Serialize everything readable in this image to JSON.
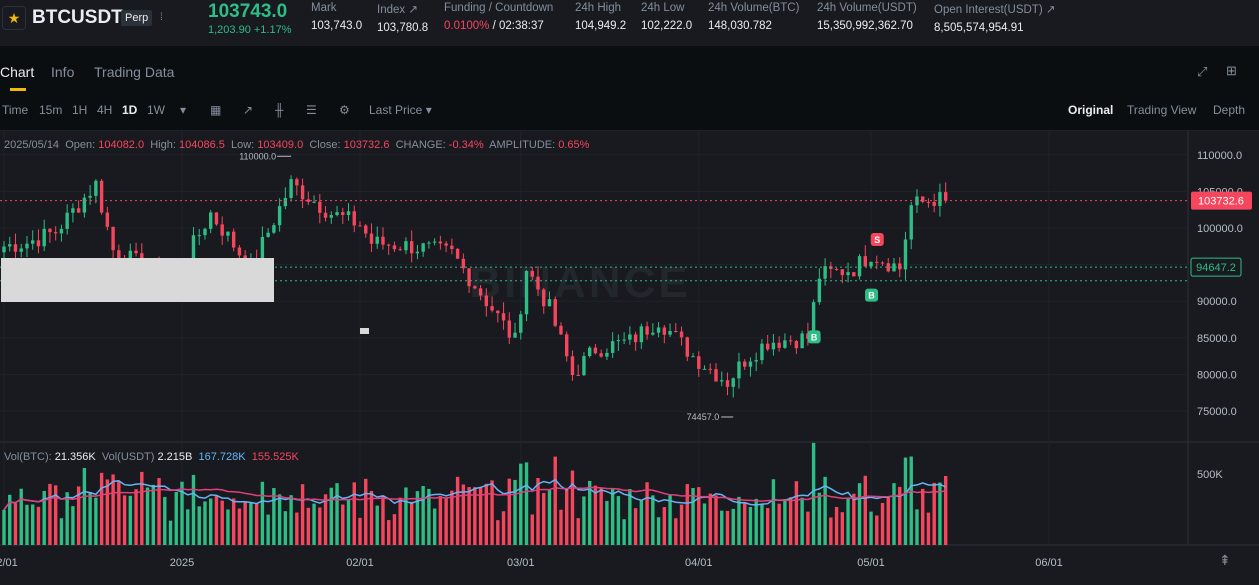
{
  "header": {
    "symbol": "BTCUSDT",
    "type_badge": "Perp",
    "last_price": "103743.0",
    "change": "1,203.90 +1.17%",
    "stats": [
      {
        "label": "Mark",
        "value": "103,743.0"
      },
      {
        "label": "Index ↗",
        "value": "103,780.8"
      },
      {
        "label": "Funding / Countdown",
        "value_red": "0.0100%",
        "value": " / 02:38:37"
      },
      {
        "label": "24h High",
        "value": "104,949.2"
      },
      {
        "label": "24h Low",
        "value": "102,222.0"
      },
      {
        "label": "24h Volume(BTC)",
        "value": "148,030.782"
      },
      {
        "label": "24h Volume(USDT)",
        "value": "15,350,992,362.70"
      },
      {
        "label": "Open Interest(USDT) ↗",
        "value": "8,505,574,954.91"
      }
    ]
  },
  "tabs": [
    "Chart",
    "Info",
    "Trading Data"
  ],
  "toolbar": {
    "left": [
      "Time",
      "15m",
      "1H",
      "4H",
      "1D",
      "1W"
    ],
    "active_interval": "1D",
    "price_type": "Last Price",
    "right": [
      "Original",
      "Trading View",
      "Depth"
    ],
    "active_view": "Original"
  },
  "ohlc": {
    "date": "2025/05/14",
    "open_label": "Open:",
    "open": "104082.0",
    "high_label": "High:",
    "high": "104086.5",
    "low_label": "Low:",
    "low": "103409.0",
    "close_label": "Close:",
    "close": "103732.6",
    "change_label": "CHANGE:",
    "change": "-0.34%",
    "amp_label": "AMPLITUDE:",
    "amp": "0.65%"
  },
  "volume_header": {
    "vol_btc_label": "Vol(BTC):",
    "vol_btc": "21.356K",
    "vol_usdt_label": "Vol(USDT)",
    "vol_usdt": "2.215B",
    "ma1": "167.728K",
    "ma2": "155.525K"
  },
  "colors": {
    "up": "#2ebd85",
    "down": "#f6465d",
    "accent": "#f0b90b",
    "ma_blue": "#64b5f6",
    "ma_pink": "#e0407a"
  },
  "chart_data": {
    "type": "candlestick",
    "y_ticks": [
      110000,
      105000,
      100000,
      95000,
      90000,
      85000,
      80000,
      75000
    ],
    "y_tick_labels": [
      "110000.0",
      "105000.0",
      "100000.0",
      "95000.0",
      "90000.0",
      "85000.0",
      "80000.0",
      "75000.0"
    ],
    "x_labels": [
      "12/01",
      "2025",
      "02/01",
      "03/01",
      "04/01",
      "05/01",
      "06/01"
    ],
    "last_price_tag": "103732.6",
    "mark_line_tag": "94647.2",
    "marker_high": "110000.0",
    "marker_low": "74457.0",
    "vol_axis_label": "500K",
    "markers": [
      "B",
      "B",
      "S"
    ],
    "close_path": [
      {
        "date": "2024-12-01",
        "close": 97500
      },
      {
        "date": "2024-12-05",
        "close": 98000
      },
      {
        "date": "2024-12-10",
        "close": 99500
      },
      {
        "date": "2024-12-17",
        "close": 106000
      },
      {
        "date": "2024-12-20",
        "close": 97000
      },
      {
        "date": "2024-12-26",
        "close": 94500
      },
      {
        "date": "2024-12-31",
        "close": 93500
      },
      {
        "date": "2025-01-06",
        "close": 102000
      },
      {
        "date": "2025-01-13",
        "close": 94500
      },
      {
        "date": "2025-01-20",
        "close": 106000
      },
      {
        "date": "2025-01-27",
        "close": 102000
      },
      {
        "date": "2025-02-01",
        "close": 100500
      },
      {
        "date": "2025-02-03",
        "close": 98000
      },
      {
        "date": "2025-02-10",
        "close": 97500
      },
      {
        "date": "2025-02-17",
        "close": 96500
      },
      {
        "date": "2025-02-24",
        "close": 89000
      },
      {
        "date": "2025-02-28",
        "close": 84500
      },
      {
        "date": "2025-03-02",
        "close": 94500
      },
      {
        "date": "2025-03-06",
        "close": 89000
      },
      {
        "date": "2025-03-10",
        "close": 80000
      },
      {
        "date": "2025-03-14",
        "close": 83500
      },
      {
        "date": "2025-03-20",
        "close": 84500
      },
      {
        "date": "2025-03-25",
        "close": 87500
      },
      {
        "date": "2025-03-31",
        "close": 82500
      },
      {
        "date": "2025-04-06",
        "close": 79000
      },
      {
        "date": "2025-04-09",
        "close": 82000
      },
      {
        "date": "2025-04-13",
        "close": 84500
      },
      {
        "date": "2025-04-20",
        "close": 85000
      },
      {
        "date": "2025-04-22",
        "close": 93500
      },
      {
        "date": "2025-04-28",
        "close": 94500
      },
      {
        "date": "2025-05-01",
        "close": 96500
      },
      {
        "date": "2025-05-06",
        "close": 94500
      },
      {
        "date": "2025-05-08",
        "close": 103000
      },
      {
        "date": "2025-05-12",
        "close": 104000
      },
      {
        "date": "2025-05-14",
        "close": 103732.6
      }
    ]
  }
}
